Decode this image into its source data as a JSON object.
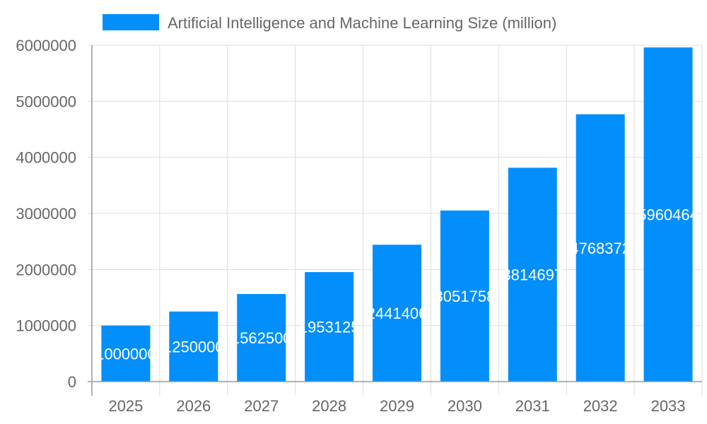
{
  "chart_data": {
    "type": "bar",
    "categories": [
      "2025",
      "2026",
      "2027",
      "2028",
      "2029",
      "2030",
      "2031",
      "2032",
      "2033"
    ],
    "series": [
      {
        "name": "Artificial Intelligence and Machine Learning Size (million)",
        "values": [
          1000000,
          1250000,
          1562500,
          1953125,
          2441406,
          3051758,
          3814697,
          4768372,
          5960464
        ]
      }
    ],
    "ylim": [
      0,
      6000000
    ],
    "yticks": [
      "0",
      "1000000",
      "2000000",
      "3000000",
      "4000000",
      "5000000",
      "6000000"
    ],
    "grid": true,
    "legend": "top",
    "color": "#038ffb",
    "data_labels": true
  }
}
